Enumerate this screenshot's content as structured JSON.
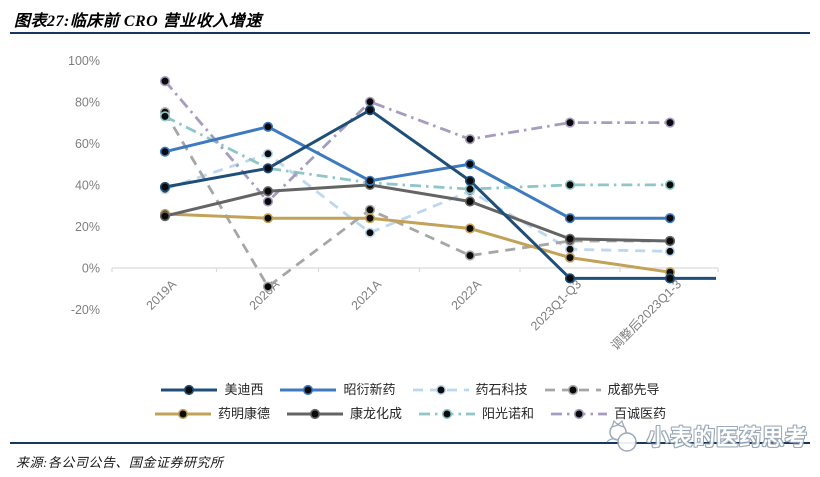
{
  "figure": {
    "title": "图表27:临床前 CRO 营业收入增速"
  },
  "source_note": "来源:各公司公告、国金证券研究所",
  "watermark": {
    "text": "小表的医药思考",
    "logo": "cat-icon"
  },
  "colors": {
    "rule": "#17375E",
    "axis_text": "#7F7F7F",
    "axis_line": "#D9D9D9",
    "marker_fill": "#0a0a0a"
  },
  "chart_data": {
    "type": "line",
    "title": "临床前 CRO 营业收入增速",
    "categories": [
      "2019A",
      "2020A",
      "2021A",
      "2022A",
      "2023Q1-Q3",
      "调整后2023Q1-3"
    ],
    "unit": "%",
    "ylim": [
      -20,
      100
    ],
    "yticks": [
      "100%",
      "80%",
      "60%",
      "40%",
      "20%",
      "0%",
      "-20%"
    ],
    "grid": false,
    "legend_position": "bottom",
    "series": [
      {
        "name": "美迪西",
        "color": "#1F4E79",
        "style": "solid",
        "values": [
          39,
          48,
          76,
          42,
          -5,
          -5
        ],
        "extend_right": true
      },
      {
        "name": "昭衍新药",
        "color": "#3D7ABF",
        "style": "solid",
        "values": [
          56,
          68,
          42,
          50,
          24,
          24
        ]
      },
      {
        "name": "药石科技",
        "color": "#BDD7EE",
        "style": "dashed",
        "values": [
          38,
          55,
          17,
          37,
          9,
          8
        ]
      },
      {
        "name": "成都先导",
        "color": "#A6A6A6",
        "style": "dashed",
        "values": [
          75,
          -9,
          28,
          6,
          13,
          13
        ]
      },
      {
        "name": "药明康德",
        "color": "#C2A158",
        "style": "solid",
        "values": [
          26,
          24,
          24,
          19,
          5,
          -2
        ]
      },
      {
        "name": "康龙化成",
        "color": "#646464",
        "style": "solid",
        "values": [
          25,
          37,
          40,
          32,
          14,
          13
        ]
      },
      {
        "name": "阳光诺和",
        "color": "#8FC6C8",
        "style": "dashdot",
        "values": [
          73,
          48,
          41,
          38,
          40,
          40
        ]
      },
      {
        "name": "百诚医药",
        "color": "#A79CC0",
        "style": "dashdot",
        "values": [
          90,
          32,
          80,
          62,
          70,
          70
        ]
      }
    ]
  }
}
